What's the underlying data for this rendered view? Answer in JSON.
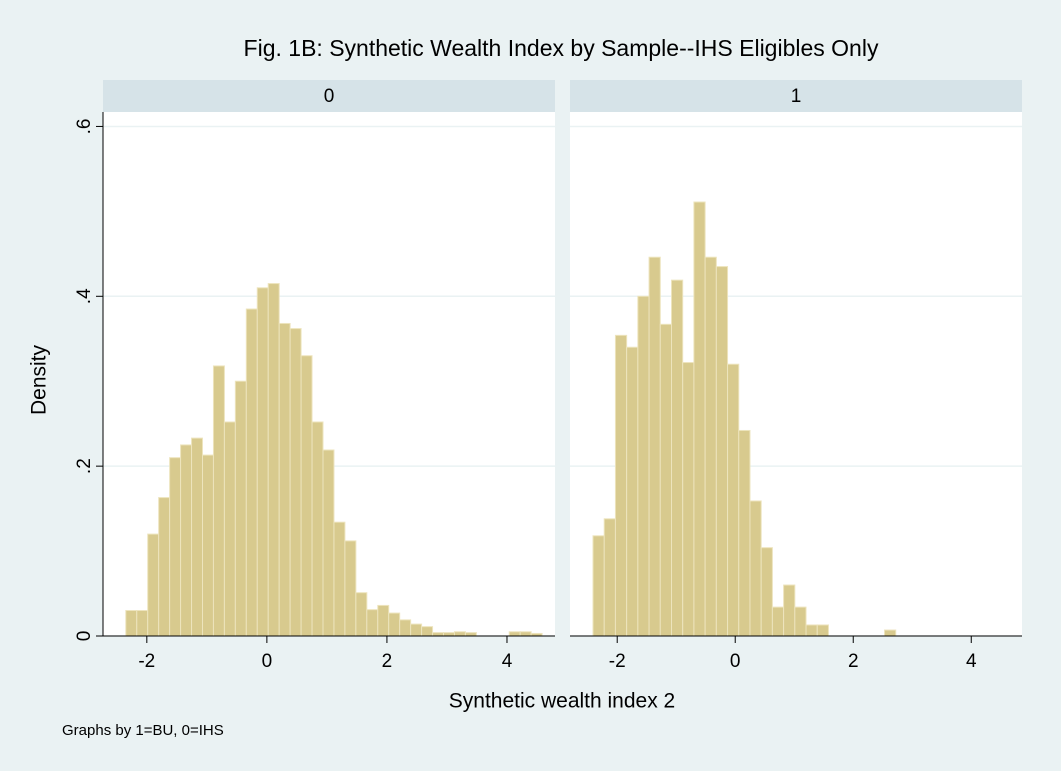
{
  "chart_data": {
    "type": "histogram",
    "title": "Fig. 1B: Synthetic Wealth Index by Sample--IHS Eligibles Only",
    "x_label": "Synthetic wealth index 2",
    "y_label": "Density",
    "note": "Graphs by 1=BU, 0=IHS",
    "color": "#d8ca8e",
    "grid": true,
    "ylim": [
      0,
      0.617
    ],
    "yticks": [
      0,
      {
        "value": 0.2,
        "label": ".2"
      },
      {
        "value": 0.4,
        "label": ".4"
      },
      {
        "value": 0.6,
        "label": ".6"
      }
    ],
    "xticks": [
      -2,
      0,
      2,
      4
    ],
    "panels": [
      {
        "name": "0",
        "xlim": [
          -2.73,
          4.8
        ],
        "bins": [
          -2.35,
          -2.1675,
          -1.985,
          -1.8025,
          -1.62,
          -1.4375,
          -1.255,
          -1.0725,
          -0.89,
          -0.7075,
          -0.525,
          -0.3425,
          -0.16,
          0.0225,
          0.205,
          0.3875,
          0.57,
          0.7525,
          0.935,
          1.1175,
          1.3,
          1.4825,
          1.665,
          1.8475,
          2.03,
          2.2125,
          2.395,
          2.5775,
          2.76,
          2.9425,
          3.125,
          3.3075,
          3.49,
          3.6725,
          3.855,
          4.0375,
          4.22,
          4.4025,
          4.585
        ],
        "values": [
          0.03,
          0.03,
          0.12,
          0.163,
          0.21,
          0.225,
          0.233,
          0.213,
          0.318,
          0.252,
          0.3,
          0.385,
          0.41,
          0.415,
          0.368,
          0.362,
          0.33,
          0.252,
          0.219,
          0.134,
          0.112,
          0.051,
          0.031,
          0.036,
          0.027,
          0.019,
          0.014,
          0.011,
          0.004,
          0.004,
          0.005,
          0.004,
          0,
          0,
          0,
          0.005,
          0.005,
          0.003
        ]
      },
      {
        "name": "1",
        "xlim": [
          -2.8,
          4.86
        ],
        "bins": [
          -2.41,
          -2.22,
          -2.03,
          -1.84,
          -1.65,
          -1.46,
          -1.27,
          -1.08,
          -0.89,
          -0.7,
          -0.51,
          -0.32,
          -0.13,
          0.06,
          0.25,
          0.44,
          0.63,
          0.82,
          1.01,
          1.2,
          1.39,
          1.58,
          1.77,
          1.96,
          2.15,
          2.34,
          2.53,
          2.72
        ],
        "values": [
          0.118,
          0.138,
          0.354,
          0.34,
          0.4,
          0.446,
          0.367,
          0.419,
          0.322,
          0.511,
          0.446,
          0.435,
          0.32,
          0.242,
          0.159,
          0.104,
          0.034,
          0.06,
          0.034,
          0.013,
          0.013,
          0,
          0,
          0,
          0,
          0,
          0.007
        ]
      }
    ]
  }
}
